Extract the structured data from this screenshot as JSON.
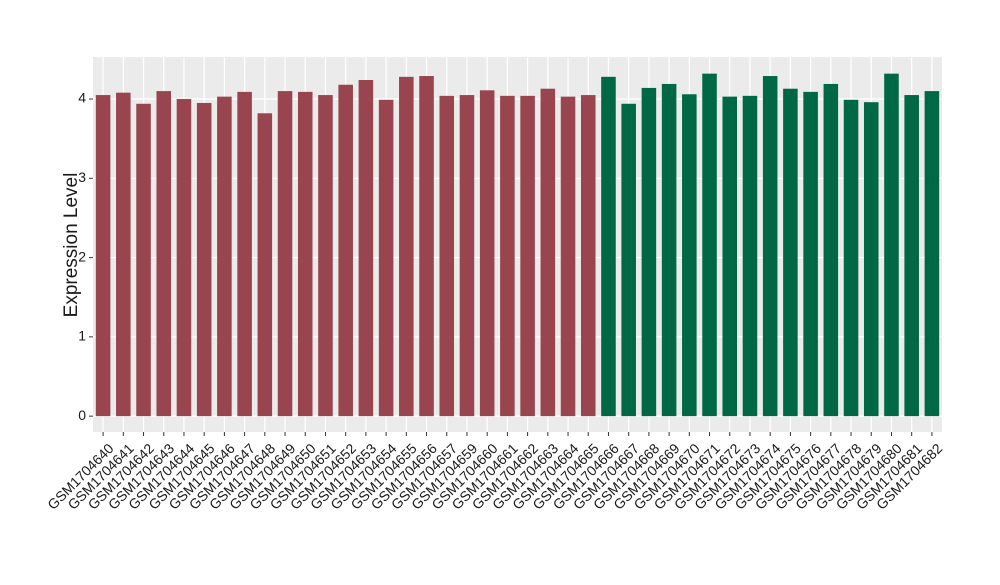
{
  "chart_data": {
    "type": "bar",
    "y_label": "Expression Level",
    "categories": [
      "GSM1704640",
      "GSM1704641",
      "GSM1704642",
      "GSM1704643",
      "GSM1704644",
      "GSM1704645",
      "GSM1704646",
      "GSM1704647",
      "GSM1704648",
      "GSM1704649",
      "GSM1704650",
      "GSM1704651",
      "GSM1704652",
      "GSM1704653",
      "GSM1704654",
      "GSM1704655",
      "GSM1704656",
      "GSM1704657",
      "GSM1704659",
      "GSM1704660",
      "GSM1704661",
      "GSM1704662",
      "GSM1704663",
      "GSM1704664",
      "GSM1704665",
      "GSM1704666",
      "GSM1704667",
      "GSM1704668",
      "GSM1704669",
      "GSM1704670",
      "GSM1704671",
      "GSM1704672",
      "GSM1704673",
      "GSM1704674",
      "GSM1704675",
      "GSM1704676",
      "GSM1704677",
      "GSM1704678",
      "GSM1704679",
      "GSM1704680",
      "GSM1704681",
      "GSM1704682"
    ],
    "values": [
      4.05,
      4.08,
      3.94,
      4.1,
      4.0,
      3.95,
      4.03,
      4.09,
      3.82,
      4.1,
      4.09,
      4.05,
      4.18,
      4.24,
      3.99,
      4.28,
      4.29,
      4.04,
      4.05,
      4.11,
      4.04,
      4.04,
      4.13,
      4.03,
      4.05,
      4.28,
      3.94,
      4.14,
      4.19,
      4.06,
      4.32,
      4.03,
      4.04,
      4.29,
      4.13,
      4.09,
      4.19,
      3.99,
      3.96,
      4.32,
      4.05,
      4.1
    ],
    "colors": [
      "#994550",
      "#994550",
      "#994550",
      "#994550",
      "#994550",
      "#994550",
      "#994550",
      "#994550",
      "#994550",
      "#994550",
      "#994550",
      "#994550",
      "#994550",
      "#994550",
      "#994550",
      "#994550",
      "#994550",
      "#994550",
      "#994550",
      "#994550",
      "#994550",
      "#994550",
      "#994550",
      "#994550",
      "#994550",
      "#006845",
      "#006845",
      "#006845",
      "#006845",
      "#006845",
      "#006845",
      "#006845",
      "#006845",
      "#006845",
      "#006845",
      "#006845",
      "#006845",
      "#006845",
      "#006845",
      "#006845",
      "#006845",
      "#006845"
    ],
    "ylim": [
      -0.2,
      4.53
    ],
    "yticks": [
      0,
      1,
      2,
      3,
      4
    ],
    "grid": true
  }
}
